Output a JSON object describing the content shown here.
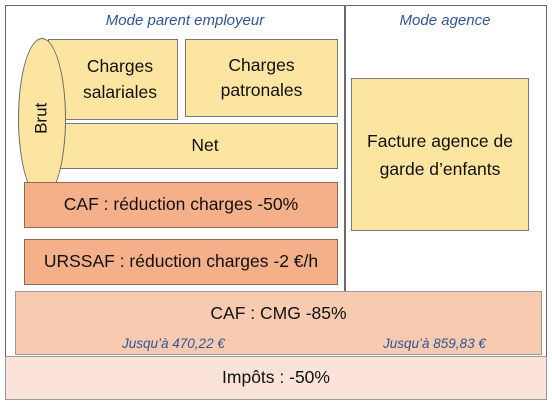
{
  "headers": {
    "parent": "Mode parent employeur",
    "agency": "Mode agence"
  },
  "boxes": {
    "brut": "Brut",
    "charges_salariales": "Charges salariales",
    "charges_patronales": "Charges patronales",
    "net": "Net",
    "caf_reduction": "CAF : réduction charges -50%",
    "urssaf_reduction": "URSSAF : réduction charges -2 €/h",
    "facture_agence": "Facture agence de garde d’enfants",
    "caf_cmg": "CAF : CMG -85%",
    "impots": "Impôts : -50%"
  },
  "notes": {
    "cmg_limit_parent": "Jusqu’à 470,22 €",
    "cmg_limit_agency": "Jusqu’à 859,83 €"
  },
  "colors": {
    "yellow": "#fbe5a1",
    "orange": "#f5b089",
    "peach": "#f8cbb0",
    "pale": "#fbe3da",
    "header_blue": "#2f5597"
  }
}
